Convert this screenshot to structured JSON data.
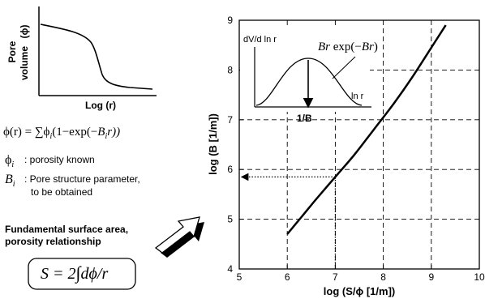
{
  "left_panel": {
    "pore_plot": {
      "ylabel_line1": "Pore",
      "ylabel_line2": "volume",
      "ylabel_symbol": "(ϕ)",
      "xlabel": "Log (r)"
    },
    "equation": {
      "lhs": "ϕ(r) = ∑ϕ",
      "sub_i": "i",
      "rhs_a": "(1−exp(−",
      "B": "B",
      "rhs_b": "r))"
    },
    "definitions": [
      {
        "symbol": "ϕ",
        "sub": "i",
        "text_line1": ": porosity known",
        "text_line2": ""
      },
      {
        "symbol": "B",
        "sub": "i",
        "text_line1": ": Pore structure parameter,",
        "text_line2": "to be obtained"
      }
    ],
    "relationship_title_line1": "Fundamental surface area,",
    "relationship_title_line2": "porosity relationship",
    "formula_box": {
      "lhs": "S = 2",
      "integral": "∫",
      "rhs": "dϕ/r"
    }
  },
  "chart_data": {
    "type": "line",
    "title": "",
    "xlabel": "log (S/ϕ [1/m])",
    "ylabel": "log (B [1/m])",
    "xlim": [
      5,
      10
    ],
    "ylim": [
      4,
      9
    ],
    "xticks": [
      "5",
      "6",
      "7",
      "8",
      "9",
      "10"
    ],
    "yticks": [
      "4",
      "5",
      "6",
      "7",
      "8",
      "9"
    ],
    "grid": true,
    "series": [
      {
        "x": [
          6.0,
          6.3,
          6.6,
          7.0,
          7.4,
          7.8,
          8.2,
          8.6,
          9.0,
          9.3
        ],
        "y": [
          4.7,
          5.05,
          5.4,
          5.85,
          6.3,
          6.8,
          7.3,
          7.85,
          8.45,
          8.9
        ]
      }
    ],
    "lookup_annotation": {
      "x": 7.0,
      "y": 5.85
    },
    "inset": {
      "ylabel": "dV/d ln r",
      "xlabel": "ln r",
      "marker_label": "1/B",
      "curve_label_B": "Br",
      "curve_label_exp": " exp(−",
      "curve_label_B2": "Br",
      "curve_label_close": ")"
    }
  }
}
